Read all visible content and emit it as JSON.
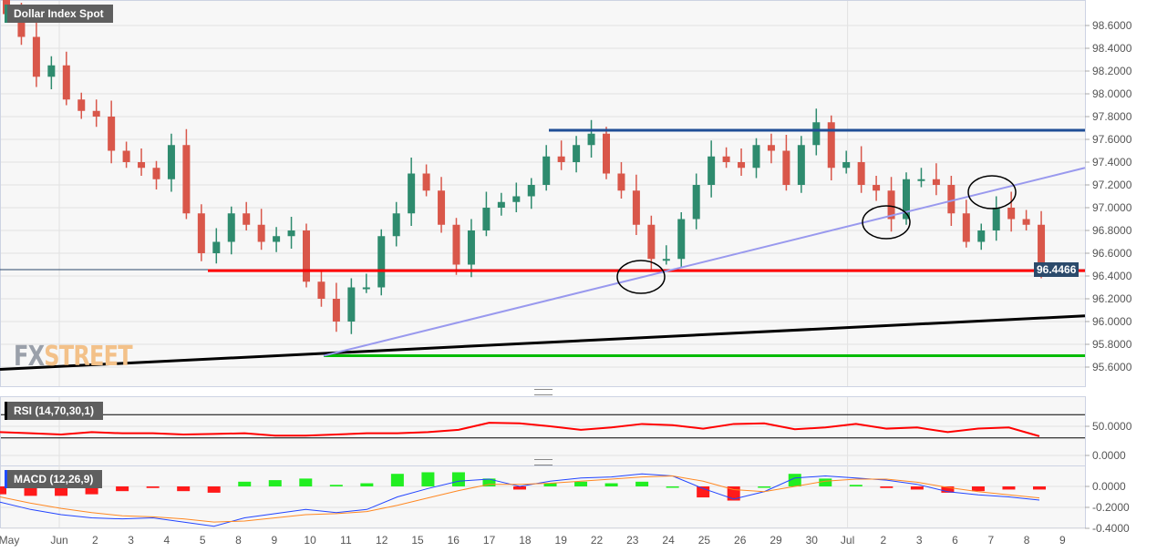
{
  "chart_data": {
    "type": "candlestick",
    "title": "Dollar Index Spot",
    "last_price": "96.4466",
    "y_ticks": [
      "95.6000",
      "95.8000",
      "96.0000",
      "96.2000",
      "96.4000",
      "96.6000",
      "96.8000",
      "97.0000",
      "97.2000",
      "97.4000",
      "97.6000",
      "97.8000",
      "98.0000",
      "98.2000",
      "98.4000",
      "98.6000"
    ],
    "ylim": [
      95.45,
      98.8
    ],
    "x_labels": [
      "May",
      "Jun",
      "2",
      "3",
      "4",
      "5",
      "8",
      "9",
      "10",
      "11",
      "12",
      "15",
      "16",
      "17",
      "18",
      "19",
      "22",
      "23",
      "24",
      "25",
      "26",
      "29",
      "30",
      "Jul",
      "2",
      "3",
      "6",
      "7",
      "8",
      "9"
    ],
    "closes": [
      98.7,
      98.5,
      98.15,
      98.25,
      97.95,
      97.85,
      97.8,
      97.5,
      97.4,
      97.35,
      97.25,
      97.55,
      96.95,
      96.6,
      96.7,
      96.95,
      96.85,
      96.7,
      96.75,
      96.8,
      96.35,
      96.2,
      96.0,
      96.3,
      96.3,
      96.75,
      96.95,
      97.3,
      97.15,
      96.85,
      96.5,
      96.8,
      97.0,
      97.05,
      97.1,
      97.2,
      97.45,
      97.4,
      97.55,
      97.65,
      97.3,
      97.15,
      96.85,
      96.55,
      96.55,
      96.9,
      97.2,
      97.45,
      97.4,
      97.35,
      97.55,
      97.5,
      97.2,
      97.55,
      97.75,
      97.35,
      97.4,
      97.2,
      97.15,
      96.9,
      97.25,
      97.25,
      97.2,
      96.95,
      96.7,
      96.8,
      97.0,
      96.9,
      96.85,
      96.45
    ],
    "open_first": 98.85,
    "colors": {
      "up": "#2e8b6e",
      "down": "#d9574a",
      "resistance": "#1f4e96",
      "support": "#ff0000",
      "base": "#00bb00",
      "trend": "#000000",
      "channel": "#9999ee"
    },
    "levels": {
      "resistance": 97.68,
      "support": 96.4466,
      "base": 95.7
    },
    "trend_line": [
      95.58,
      96.05
    ],
    "channel_line": [
      95.7,
      97.35
    ],
    "rsi": {
      "label": "RSI (14,70,30,1)",
      "y_ticks": [
        "0.0000",
        "50.0000"
      ],
      "overbought": 70,
      "oversold": 30,
      "values": [
        40,
        38,
        36,
        40,
        38,
        38,
        36,
        37,
        38,
        34,
        34,
        36,
        38,
        38,
        40,
        44,
        56,
        55,
        50,
        44,
        48,
        54,
        52,
        46,
        54,
        55,
        45,
        48,
        54,
        46,
        48,
        40,
        46,
        48,
        33
      ]
    },
    "macd": {
      "label": "MACD (12,26,9)",
      "y_ticks": [
        "-0.4000",
        "-0.2000",
        "0.0000"
      ],
      "macd": [
        -0.15,
        -0.22,
        -0.27,
        -0.3,
        -0.31,
        -0.3,
        -0.34,
        -0.38,
        -0.3,
        -0.26,
        -0.22,
        -0.25,
        -0.22,
        -0.1,
        -0.02,
        0.05,
        0.07,
        0.0,
        0.05,
        0.08,
        0.09,
        0.12,
        0.1,
        -0.02,
        -0.12,
        -0.05,
        0.08,
        0.1,
        0.08,
        0.06,
        0.02,
        -0.05,
        -0.08,
        -0.1,
        -0.13
      ],
      "signal": [
        -0.1,
        -0.16,
        -0.21,
        -0.25,
        -0.28,
        -0.29,
        -0.31,
        -0.34,
        -0.33,
        -0.3,
        -0.27,
        -0.26,
        -0.24,
        -0.18,
        -0.11,
        -0.04,
        0.02,
        0.02,
        0.03,
        0.05,
        0.07,
        0.09,
        0.1,
        0.05,
        -0.03,
        -0.05,
        0.0,
        0.05,
        0.07,
        0.07,
        0.04,
        -0.01,
        -0.05,
        -0.08,
        -0.11
      ]
    }
  },
  "logo": {
    "fx": "FX",
    "street": "STREET"
  }
}
